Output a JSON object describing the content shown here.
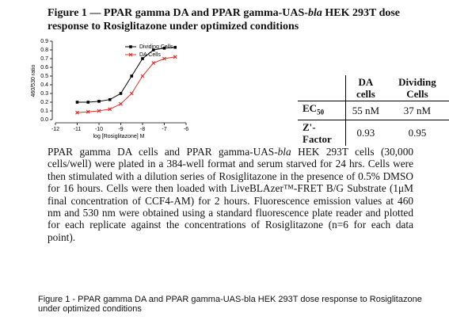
{
  "title": [
    "Figure 1 — PPAR gamma DA and PPAR gamma-UAS-",
    "bla",
    " HEK 293T dose response to Rosiglitazone under optimized conditions"
  ],
  "chart_data": {
    "type": "line",
    "xlabel": "log [Rosiglitazone] M",
    "ylabel": "460/530 ratio",
    "x": [
      -11,
      -10.5,
      -10,
      -9.5,
      -9,
      -8.5,
      -8,
      -7.5,
      -7,
      -6.5
    ],
    "series": [
      {
        "name": "Dividing Cells",
        "color": "#000000",
        "marker": "square",
        "values": [
          0.2,
          0.2,
          0.21,
          0.23,
          0.3,
          0.5,
          0.7,
          0.8,
          0.82,
          0.83
        ]
      },
      {
        "name": "DA Cells",
        "color": "#e0302a",
        "marker": "x",
        "values": [
          0.08,
          0.09,
          0.1,
          0.12,
          0.18,
          0.3,
          0.5,
          0.65,
          0.7,
          0.72
        ]
      }
    ],
    "xlim": [
      -12,
      -6
    ],
    "xticks": [
      -12,
      -11,
      -10,
      -9,
      -8,
      -7,
      -6
    ],
    "ylim": [
      0,
      0.9
    ],
    "yticks": [
      {
        "value": 0,
        "label": "0.0"
      },
      0.1,
      0.2,
      0.3,
      0.4,
      0.5,
      0.6,
      0.7,
      0.8,
      0.9
    ],
    "legend": "upper-right"
  },
  "table": {
    "header": [
      "DA cells",
      "Dividing Cells"
    ],
    "rows": [
      [
        [
          "EC",
          "50"
        ],
        "55 nM",
        "37 nM"
      ],
      [
        [
          "Z'-Factor"
        ],
        "0.93",
        "0.95"
      ]
    ]
  },
  "body": [
    "PPAR gamma DA cells and PPAR gamma-UAS-",
    "bla",
    " HEK 293T cells (30,000 cells/well) were plated in a 384-well format and serum starved for 24 hrs. Cells were then stimulated with a dilution series of Rosiglitazone in the presence of 0.5% DMSO for 16 hours. Cells were then loaded with LiveBLAzer™-FRET B/G Substrate (1μM final concentration of CCF4-AM) for 2 hours. Fluorescence emission values at 460 nm and 530 nm were obtained using a standard fluorescence plate reader and plotted for each replicate against the concentrations of Rosiglitazone (n=6 for each data point)."
  ],
  "caption": "Figure 1 - PPAR gamma DA and PPAR gamma-UAS-bla HEK 293T dose response to Rosiglitazone under optimized conditions"
}
